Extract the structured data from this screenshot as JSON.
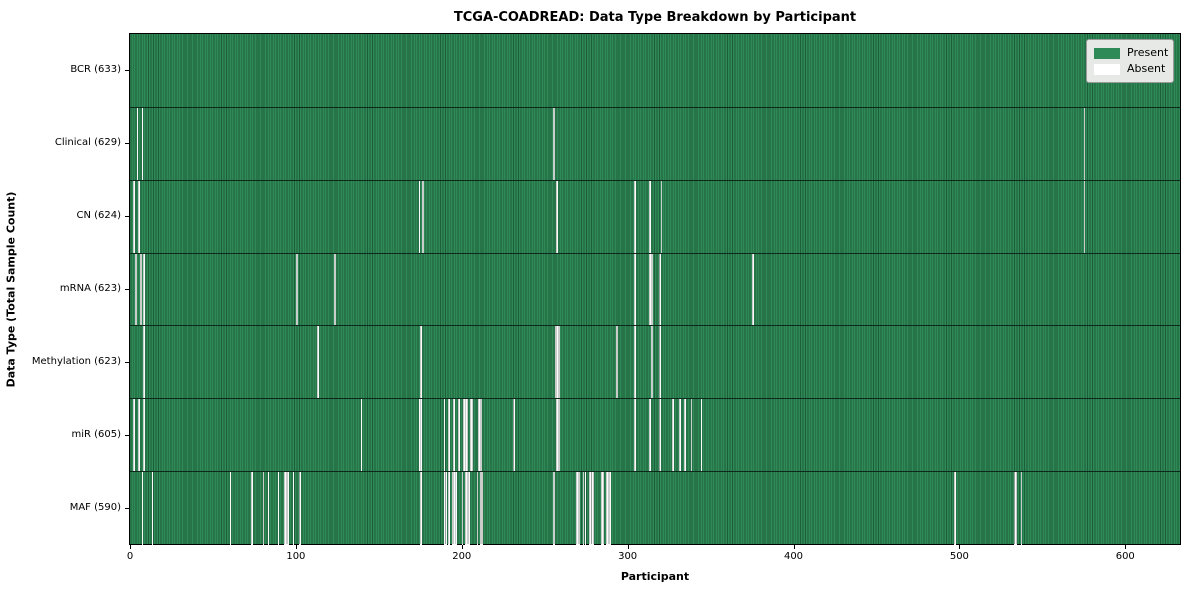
{
  "title": "TCGA-COADREAD: Data Type Breakdown by Participant",
  "xlabel": "Participant",
  "ylabel": "Data Type (Total Sample Count)",
  "legend": {
    "present_label": "Present",
    "absent_label": "Absent"
  },
  "colors": {
    "present": "#2e8b57",
    "absent": "#fbfbfb",
    "row_separator": "#0e2b1c",
    "legend_bg": "#e6e9e6"
  },
  "chart_data": {
    "type": "heatmap",
    "title": "TCGA-COADREAD: Data Type Breakdown by Participant",
    "xlabel": "Participant",
    "ylabel": "Data Type (Total Sample Count)",
    "legend_entries": [
      "Present",
      "Absent"
    ],
    "legend_position": "upper right",
    "grid": false,
    "n_participants": 633,
    "x_range": [
      0,
      633
    ],
    "x_ticks": [
      0,
      100,
      200,
      300,
      400,
      500,
      600
    ],
    "rows": [
      {
        "label": "BCR (633)",
        "name": "BCR",
        "present_count": 633,
        "absent_participants": []
      },
      {
        "label": "Clinical (629)",
        "name": "Clinical",
        "present_count": 629,
        "absent_participants": [
          4,
          7,
          255,
          575
        ]
      },
      {
        "label": "CN (624)",
        "name": "CN",
        "present_count": 624,
        "absent_participants": [
          2,
          5,
          174,
          176,
          257,
          304,
          313,
          320,
          575
        ]
      },
      {
        "label": "mRNA (623)",
        "name": "mRNA",
        "present_count": 623,
        "absent_participants": [
          3,
          6,
          8,
          100,
          123,
          304,
          313,
          314,
          319,
          375
        ]
      },
      {
        "label": "Methylation (623)",
        "name": "Methylation",
        "present_count": 623,
        "absent_participants": [
          8,
          113,
          175,
          256,
          257,
          258,
          293,
          304,
          314,
          319
        ]
      },
      {
        "label": "miR (605)",
        "name": "miR",
        "present_count": 605,
        "absent_participants": [
          2,
          5,
          8,
          139,
          174,
          175,
          189,
          192,
          195,
          198,
          201,
          202,
          203,
          205,
          206,
          210,
          211,
          231,
          257,
          258,
          304,
          313,
          319,
          327,
          331,
          334,
          338,
          344
        ]
      },
      {
        "label": "MAF (590)",
        "name": "MAF",
        "present_count": 590,
        "absent_participants": [
          7,
          13,
          60,
          73,
          80,
          83,
          89,
          93,
          94,
          95,
          98,
          102,
          175,
          189,
          190,
          192,
          194,
          195,
          196,
          200,
          202,
          203,
          204,
          209,
          211,
          212,
          255,
          269,
          270,
          273,
          274,
          277,
          278,
          279,
          284,
          285,
          287,
          288,
          289,
          497,
          533,
          534,
          537
        ]
      }
    ]
  }
}
